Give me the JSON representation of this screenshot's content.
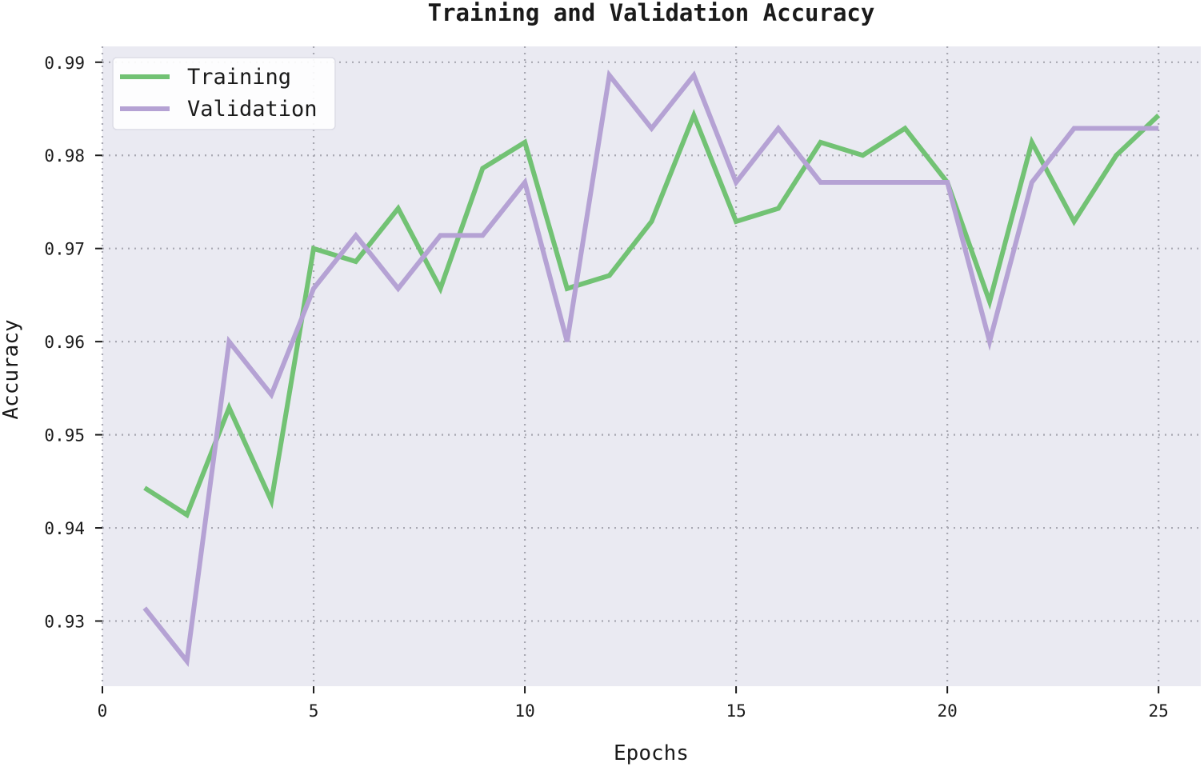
{
  "chart_data": {
    "type": "line",
    "title": "Training and Validation Accuracy",
    "xlabel": "Epochs",
    "ylabel": "Accuracy",
    "xlim": [
      0,
      26
    ],
    "ylim": [
      0.923,
      0.9917
    ],
    "xticks": [
      0,
      5,
      10,
      15,
      20,
      25
    ],
    "yticks": [
      0.93,
      0.94,
      0.95,
      0.96,
      0.97,
      0.98,
      0.99
    ],
    "xtick_labels": [
      "0",
      "5",
      "10",
      "15",
      "20",
      "25"
    ],
    "ytick_labels": [
      "0.93",
      "0.94",
      "0.95",
      "0.96",
      "0.97",
      "0.98",
      "0.99"
    ],
    "grid": true,
    "legend_position": "top-left",
    "x": [
      1,
      2,
      3,
      4,
      5,
      6,
      7,
      8,
      9,
      10,
      11,
      12,
      13,
      14,
      15,
      16,
      17,
      18,
      19,
      20,
      21,
      22,
      23,
      24,
      25
    ],
    "series": [
      {
        "name": "Training",
        "color": "#72c274",
        "values": [
          0.9443,
          0.9414,
          0.9529,
          0.9429,
          0.97,
          0.9686,
          0.9743,
          0.9657,
          0.9786,
          0.9814,
          0.9657,
          0.9671,
          0.9729,
          0.9843,
          0.9729,
          0.9743,
          0.9814,
          0.98,
          0.9829,
          0.9771,
          0.9643,
          0.9814,
          0.9729,
          0.98,
          0.9843
        ]
      },
      {
        "name": "Validation",
        "color": "#b5a2d4",
        "values": [
          0.9314,
          0.9257,
          0.96,
          0.9543,
          0.9657,
          0.9714,
          0.9657,
          0.9714,
          0.9714,
          0.9771,
          0.96,
          0.9886,
          0.9829,
          0.9886,
          0.9771,
          0.9829,
          0.9771,
          0.9771,
          0.9771,
          0.9771,
          0.96,
          0.9771,
          0.9829,
          0.9829,
          0.9829
        ]
      }
    ]
  }
}
